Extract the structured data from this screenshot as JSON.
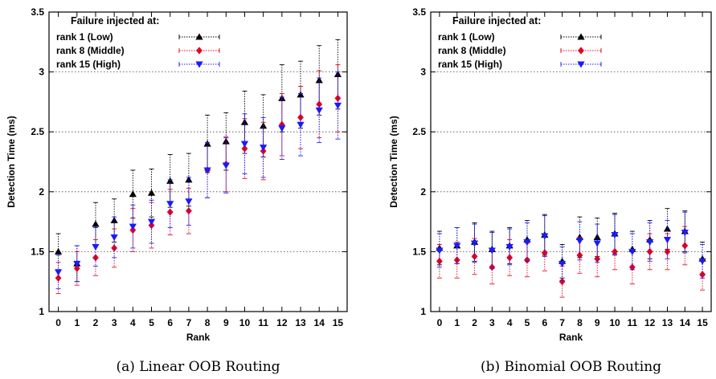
{
  "chart_data": [
    {
      "type": "scatter",
      "caption": "(a) Linear OOB Routing",
      "xlabel": "Rank",
      "ylabel": "Detection Time (ms)",
      "x": [
        0,
        1,
        2,
        3,
        4,
        5,
        6,
        7,
        8,
        9,
        10,
        11,
        12,
        13,
        14,
        15
      ],
      "xlim": [
        -0.5,
        15.5
      ],
      "ylim": [
        1,
        3.5
      ],
      "yticks": [
        "1",
        "1.5",
        "2",
        "2.5",
        "3",
        "3.5"
      ],
      "grid": "horizontal dotted at 1.5, 2, 2.5, 3",
      "legend": {
        "title": "Failure injected at:",
        "position": "top-left"
      },
      "series": [
        {
          "name": "rank 1 (Low)",
          "color": "#000000",
          "marker": "triangle-up",
          "values": [
            1.5,
            1.4,
            1.73,
            1.76,
            1.98,
            1.99,
            2.09,
            2.1,
            2.4,
            2.42,
            2.58,
            2.55,
            2.78,
            2.81,
            2.93,
            2.98
          ],
          "err": [
            0.15,
            0.15,
            0.18,
            0.18,
            0.2,
            0.2,
            0.22,
            0.22,
            0.24,
            0.24,
            0.26,
            0.26,
            0.28,
            0.28,
            0.29,
            0.29
          ]
        },
        {
          "name": "rank 8 (Middle)",
          "color": "#e8001c",
          "marker": "diamond",
          "values": [
            1.28,
            1.36,
            1.45,
            1.53,
            1.68,
            1.72,
            1.83,
            1.84,
            2.18,
            2.23,
            2.36,
            2.34,
            2.56,
            2.62,
            2.73,
            2.78
          ],
          "err": [
            0.13,
            0.14,
            0.15,
            0.16,
            0.18,
            0.19,
            0.19,
            0.19,
            0.23,
            0.23,
            0.25,
            0.24,
            0.26,
            0.26,
            0.28,
            0.28
          ]
        },
        {
          "name": "rank 15 (High)",
          "color": "#1a1aff",
          "marker": "triangle-down",
          "values": [
            1.33,
            1.4,
            1.54,
            1.62,
            1.71,
            1.75,
            1.9,
            1.92,
            2.18,
            2.22,
            2.4,
            2.37,
            2.53,
            2.56,
            2.68,
            2.72
          ],
          "err": [
            0.14,
            0.15,
            0.16,
            0.17,
            0.18,
            0.18,
            0.2,
            0.2,
            0.23,
            0.23,
            0.25,
            0.25,
            0.26,
            0.26,
            0.27,
            0.28
          ]
        }
      ]
    },
    {
      "type": "scatter",
      "caption": "(b) Binomial OOB Routing",
      "xlabel": "Rank",
      "ylabel": "Detection Time (ms)",
      "x": [
        0,
        1,
        2,
        3,
        4,
        5,
        6,
        7,
        8,
        9,
        10,
        11,
        12,
        13,
        14,
        15
      ],
      "xlim": [
        -0.5,
        15.5
      ],
      "ylim": [
        1,
        3.5
      ],
      "yticks": [
        "1",
        "1.5",
        "2",
        "2.5",
        "3",
        "3.5"
      ],
      "grid": "horizontal dotted at 1.5, 2, 2.5, 3",
      "legend": {
        "title": "Failure injected at:",
        "position": "top-left"
      },
      "series": [
        {
          "name": "rank 1 (Low)",
          "color": "#000000",
          "marker": "triangle-up",
          "values": [
            1.53,
            1.55,
            1.58,
            1.52,
            1.55,
            1.6,
            1.64,
            1.42,
            1.62,
            1.62,
            1.65,
            1.52,
            1.6,
            1.69,
            1.67,
            1.44
          ],
          "err": [
            0.14,
            0.15,
            0.16,
            0.15,
            0.15,
            0.16,
            0.17,
            0.14,
            0.17,
            0.16,
            0.17,
            0.15,
            0.16,
            0.17,
            0.17,
            0.14
          ]
        },
        {
          "name": "rank 8 (Middle)",
          "color": "#e8001c",
          "marker": "diamond",
          "values": [
            1.42,
            1.43,
            1.46,
            1.37,
            1.45,
            1.43,
            1.49,
            1.25,
            1.47,
            1.44,
            1.5,
            1.37,
            1.5,
            1.5,
            1.55,
            1.31
          ],
          "err": [
            0.14,
            0.15,
            0.15,
            0.14,
            0.15,
            0.14,
            0.15,
            0.13,
            0.15,
            0.15,
            0.15,
            0.14,
            0.15,
            0.15,
            0.16,
            0.13
          ]
        },
        {
          "name": "rank 15 (High)",
          "color": "#1a1aff",
          "marker": "triangle-down",
          "values": [
            1.51,
            1.55,
            1.57,
            1.51,
            1.54,
            1.58,
            1.63,
            1.4,
            1.59,
            1.57,
            1.64,
            1.5,
            1.58,
            1.6,
            1.66,
            1.42
          ],
          "err": [
            0.14,
            0.15,
            0.16,
            0.15,
            0.15,
            0.16,
            0.17,
            0.14,
            0.16,
            0.16,
            0.17,
            0.15,
            0.16,
            0.16,
            0.17,
            0.14
          ]
        }
      ]
    }
  ]
}
